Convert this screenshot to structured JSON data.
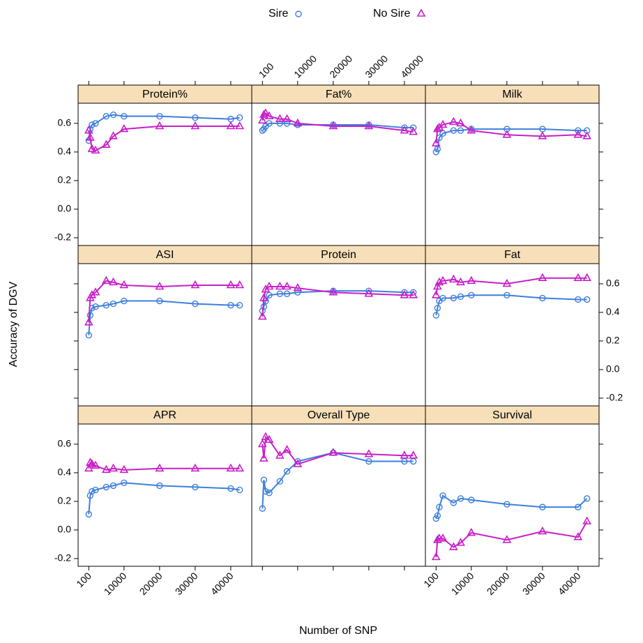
{
  "chart_data": {
    "type": "line",
    "x_label": "Number of SNP",
    "y_label": "Accuracy of DGV",
    "legend_position": "top",
    "xlim": [
      -2900,
      45900
    ],
    "ylim": [
      -0.254,
      0.741
    ],
    "xticks": [
      100,
      10000,
      20000,
      30000,
      40000
    ],
    "yticks": [
      -0.2,
      {
        "value": 0,
        "label": "0.0"
      },
      0.2,
      0.4,
      0.6
    ],
    "x": [
      100,
      500,
      1000,
      2000,
      5000,
      7000,
      10000,
      20000,
      30000,
      40000,
      42500
    ],
    "series": [
      {
        "name": "Sire",
        "color": "#3d7fdc",
        "marker": "circle"
      },
      {
        "name": "No Sire",
        "color": "#c81ec8",
        "marker": "triangle"
      }
    ],
    "panels": [
      {
        "title": "Protein%",
        "values": [
          [
            0.48,
            0.56,
            0.59,
            0.6,
            0.65,
            0.66,
            0.65,
            0.65,
            0.64,
            0.63,
            0.64
          ],
          [
            0.55,
            0.5,
            0.42,
            0.41,
            0.45,
            0.51,
            0.56,
            0.58,
            0.58,
            0.58,
            0.58
          ]
        ]
      },
      {
        "title": "Fat%",
        "values": [
          [
            0.55,
            0.56,
            0.58,
            0.6,
            0.6,
            0.6,
            0.59,
            0.59,
            0.59,
            0.57,
            0.57
          ],
          [
            0.62,
            0.66,
            0.67,
            0.65,
            0.63,
            0.63,
            0.6,
            0.58,
            0.58,
            0.55,
            0.54
          ]
        ]
      },
      {
        "title": "Milk",
        "values": [
          [
            0.4,
            0.42,
            0.5,
            0.53,
            0.55,
            0.55,
            0.56,
            0.56,
            0.56,
            0.55,
            0.55
          ],
          [
            0.46,
            0.56,
            0.57,
            0.59,
            0.61,
            0.6,
            0.55,
            0.52,
            0.51,
            0.52,
            0.51
          ]
        ]
      },
      {
        "title": "ASI",
        "values": [
          [
            0.24,
            0.38,
            0.43,
            0.44,
            0.45,
            0.46,
            0.48,
            0.48,
            0.46,
            0.45,
            0.45
          ],
          [
            0.33,
            0.5,
            0.52,
            0.54,
            0.62,
            0.61,
            0.59,
            0.58,
            0.59,
            0.59,
            0.59
          ]
        ]
      },
      {
        "title": "Protein",
        "values": [
          [
            0.41,
            0.44,
            0.48,
            0.52,
            0.53,
            0.53,
            0.54,
            0.55,
            0.55,
            0.54,
            0.54
          ],
          [
            0.37,
            0.5,
            0.56,
            0.58,
            0.58,
            0.58,
            0.57,
            0.54,
            0.53,
            0.52,
            0.52
          ]
        ]
      },
      {
        "title": "Fat",
        "values": [
          [
            0.38,
            0.43,
            0.48,
            0.5,
            0.5,
            0.51,
            0.52,
            0.52,
            0.5,
            0.49,
            0.49
          ],
          [
            0.52,
            0.58,
            0.61,
            0.62,
            0.63,
            0.61,
            0.62,
            0.6,
            0.64,
            0.64,
            0.64
          ]
        ]
      },
      {
        "title": "APR",
        "values": [
          [
            0.11,
            0.24,
            0.27,
            0.28,
            0.3,
            0.31,
            0.33,
            0.31,
            0.3,
            0.29,
            0.28
          ],
          [
            0.43,
            0.47,
            0.46,
            0.45,
            0.42,
            0.43,
            0.42,
            0.43,
            0.43,
            0.43,
            0.43
          ]
        ]
      },
      {
        "title": "Overall Type",
        "values": [
          [
            0.15,
            0.35,
            0.27,
            0.26,
            0.34,
            0.41,
            0.48,
            0.54,
            0.48,
            0.48,
            0.48
          ],
          [
            0.6,
            0.5,
            0.65,
            0.63,
            0.52,
            0.56,
            0.46,
            0.54,
            0.53,
            0.52,
            0.52
          ]
        ]
      },
      {
        "title": "Survival",
        "values": [
          [
            0.08,
            0.1,
            0.16,
            0.24,
            0.19,
            0.22,
            0.21,
            0.18,
            0.16,
            0.16,
            0.22
          ],
          [
            -0.19,
            -0.07,
            -0.06,
            -0.06,
            -0.12,
            -0.09,
            -0.02,
            -0.07,
            -0.01,
            -0.05,
            0.06
          ]
        ]
      }
    ]
  }
}
